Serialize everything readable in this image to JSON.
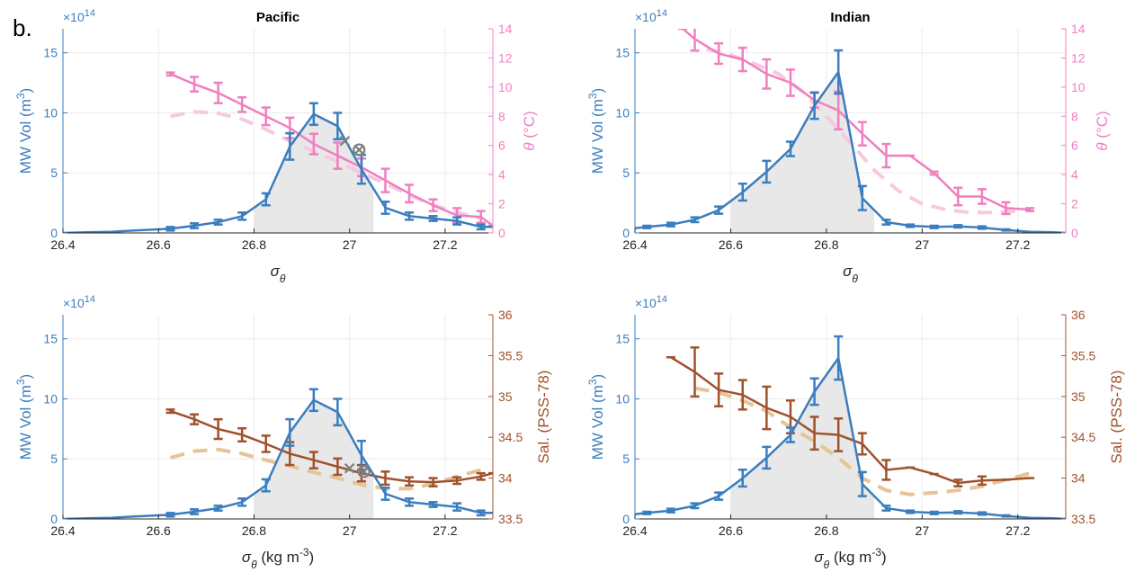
{
  "panel_label": "b.",
  "colors": {
    "volume": "#3a7ebf",
    "theta": "#f07fc0",
    "theta_clim": "#f7c8e2",
    "salinity": "#a0522d",
    "salinity_clim": "#e5c495",
    "marker": "#7f7f7f",
    "shade": "#e8e8e8",
    "grid": "#ebebeb"
  },
  "chart_data": [
    {
      "type": "line",
      "title": "Pacific",
      "xlabel": "σθ",
      "ylabel_left": "MW Vol (m3)",
      "ylabel_right": "θ (°C)",
      "y_multiplier": "×10",
      "y_multiplier_exp": "14",
      "xlim": [
        26.4,
        27.3
      ],
      "ylim_left": [
        0,
        17
      ],
      "ylim_right": [
        0,
        14
      ],
      "xticks": [
        "26.4",
        "26.6",
        "26.8",
        "27",
        "27.2"
      ],
      "yticks_left": [
        "0",
        "5",
        "10",
        "15"
      ],
      "yticks_right": [
        "0",
        "2",
        "4",
        "6",
        "8",
        "10",
        "12",
        "14"
      ],
      "shaded_range": [
        26.8,
        27.05
      ],
      "grid": true,
      "volume": {
        "x": [
          26.4,
          26.45,
          26.5,
          26.55,
          26.6,
          26.625,
          26.675,
          26.725,
          26.775,
          26.825,
          26.875,
          26.925,
          26.975,
          27.025,
          27.075,
          27.125,
          27.175,
          27.225,
          27.275,
          27.3
        ],
        "y": [
          0.0,
          0.05,
          0.1,
          0.2,
          0.3,
          0.35,
          0.6,
          0.9,
          1.4,
          2.8,
          7.2,
          9.9,
          8.9,
          5.3,
          2.1,
          1.4,
          1.2,
          1.0,
          0.5,
          0.5
        ],
        "err": [
          0,
          0,
          0,
          0,
          0,
          0.15,
          0.2,
          0.2,
          0.3,
          0.5,
          1.1,
          0.9,
          1.1,
          1.2,
          0.5,
          0.3,
          0.2,
          0.3,
          0.2,
          0
        ]
      },
      "property": {
        "x": [
          26.625,
          26.675,
          26.725,
          26.775,
          26.825,
          26.875,
          26.925,
          26.975,
          27.025,
          27.075,
          27.125,
          27.175,
          27.225,
          27.275,
          27.3
        ],
        "y": [
          10.9,
          10.2,
          9.6,
          8.8,
          8.0,
          7.2,
          6.1,
          5.3,
          4.5,
          3.6,
          2.7,
          1.9,
          1.2,
          1.1,
          0.5
        ],
        "err": [
          0.1,
          0.5,
          0.7,
          0.5,
          0.6,
          0.7,
          0.7,
          0.9,
          0.6,
          0.8,
          0.6,
          0.4,
          0.5,
          0.4,
          0
        ]
      },
      "climatology": {
        "x": [
          26.625,
          26.675,
          26.725,
          26.775,
          26.825,
          26.875,
          26.925,
          26.975,
          27.025,
          27.075,
          27.125,
          27.175,
          27.225,
          27.275
        ],
        "y": [
          8.0,
          8.3,
          8.2,
          7.8,
          7.1,
          6.3,
          5.6,
          4.9,
          4.1,
          3.4,
          2.6,
          1.9,
          1.4,
          1.0
        ]
      },
      "markers": [
        {
          "shape": "x",
          "x": 26.99,
          "y": 6.3
        },
        {
          "shape": "circle-x",
          "x": 27.02,
          "y": 5.7
        }
      ]
    },
    {
      "type": "line",
      "title": "Indian",
      "xlabel": "σθ",
      "ylabel_left": "MW Vol (m3)",
      "ylabel_right": "θ (°C)",
      "y_multiplier": "×10",
      "y_multiplier_exp": "14",
      "xlim": [
        26.4,
        27.3
      ],
      "ylim_left": [
        0,
        17
      ],
      "ylim_right": [
        0,
        14
      ],
      "xticks": [
        "26.4",
        "26.6",
        "26.8",
        "27",
        "27.2"
      ],
      "yticks_left": [
        "0",
        "5",
        "10",
        "15"
      ],
      "yticks_right": [
        "0",
        "2",
        "4",
        "6",
        "8",
        "10",
        "12",
        "14"
      ],
      "shaded_range": [
        26.6,
        26.9
      ],
      "grid": true,
      "volume": {
        "x": [
          26.4,
          26.425,
          26.475,
          26.525,
          26.575,
          26.625,
          26.675,
          26.725,
          26.775,
          26.825,
          26.875,
          26.925,
          26.975,
          27.025,
          27.075,
          27.125,
          27.175,
          27.225,
          27.275,
          27.3
        ],
        "y": [
          0.4,
          0.5,
          0.7,
          1.1,
          1.9,
          3.4,
          5.1,
          7.0,
          10.6,
          13.4,
          2.9,
          0.9,
          0.6,
          0.5,
          0.55,
          0.45,
          0.25,
          0.1,
          0.05,
          0
        ],
        "err": [
          0,
          0.1,
          0.15,
          0.2,
          0.3,
          0.7,
          0.9,
          0.6,
          1.1,
          1.8,
          1.0,
          0.2,
          0.1,
          0.1,
          0.1,
          0.1,
          0.05,
          0,
          0,
          0
        ]
      },
      "property": {
        "x": [
          26.5,
          26.525,
          26.575,
          26.625,
          26.675,
          26.725,
          26.775,
          26.825,
          26.875,
          26.925,
          26.975,
          27.025,
          27.075,
          27.125,
          27.175,
          27.225
        ],
        "y": [
          14.0,
          13.3,
          12.3,
          11.9,
          10.9,
          10.3,
          9.1,
          8.4,
          6.8,
          5.3,
          5.3,
          4.1,
          2.5,
          2.5,
          1.7,
          1.6
        ],
        "err": [
          0,
          0.8,
          0.7,
          0.8,
          1.0,
          0.9,
          0.5,
          1.3,
          0.8,
          0.8,
          0,
          0.1,
          0.6,
          0.5,
          0.4,
          0.1
        ]
      },
      "climatology": {
        "x": [
          26.55,
          26.6,
          26.65,
          26.7,
          26.75,
          26.8,
          26.85,
          26.9,
          26.95,
          27.0,
          27.05,
          27.1,
          27.15,
          27.2
        ],
        "y": [
          12.6,
          12.2,
          11.6,
          10.9,
          9.7,
          8.0,
          6.2,
          4.3,
          2.9,
          2.0,
          1.6,
          1.4,
          1.4,
          1.5
        ]
      },
      "markers": []
    },
    {
      "type": "line",
      "title": "",
      "xlabel": "σθ (kg m-3)",
      "ylabel_left": "MW Vol (m3)",
      "ylabel_right": "Sal. (PSS-78)",
      "y_multiplier": "×10",
      "y_multiplier_exp": "14",
      "xlim": [
        26.4,
        27.3
      ],
      "ylim_left": [
        0,
        17
      ],
      "ylim_right": [
        33.5,
        36
      ],
      "xticks": [
        "26.4",
        "26.6",
        "26.8",
        "27",
        "27.2"
      ],
      "yticks_left": [
        "0",
        "5",
        "10",
        "15"
      ],
      "yticks_right": [
        "33.5",
        "34",
        "34.5",
        "35",
        "35.5",
        "36"
      ],
      "shaded_range": [
        26.8,
        27.05
      ],
      "grid": true,
      "volume": {
        "x": [
          26.4,
          26.45,
          26.5,
          26.55,
          26.6,
          26.625,
          26.675,
          26.725,
          26.775,
          26.825,
          26.875,
          26.925,
          26.975,
          27.025,
          27.075,
          27.125,
          27.175,
          27.225,
          27.275,
          27.3
        ],
        "y": [
          0.0,
          0.05,
          0.1,
          0.2,
          0.3,
          0.35,
          0.6,
          0.9,
          1.4,
          2.8,
          7.2,
          9.9,
          8.9,
          5.3,
          2.1,
          1.4,
          1.2,
          1.0,
          0.5,
          0.5
        ],
        "err": [
          0,
          0,
          0,
          0,
          0,
          0.15,
          0.2,
          0.2,
          0.3,
          0.5,
          1.1,
          0.9,
          1.1,
          1.2,
          0.5,
          0.3,
          0.2,
          0.3,
          0.2,
          0
        ]
      },
      "property": {
        "x": [
          26.625,
          26.675,
          26.725,
          26.775,
          26.825,
          26.875,
          26.925,
          26.975,
          27.025,
          27.075,
          27.125,
          27.175,
          27.225,
          27.275,
          27.3
        ],
        "y": [
          34.82,
          34.72,
          34.6,
          34.53,
          34.42,
          34.3,
          34.22,
          34.14,
          34.06,
          34.0,
          33.96,
          33.95,
          33.97,
          34.02,
          34.06
        ],
        "err": [
          0.02,
          0.06,
          0.12,
          0.08,
          0.1,
          0.14,
          0.1,
          0.1,
          0.1,
          0.08,
          0.05,
          0.05,
          0.04,
          0.04,
          0
        ]
      },
      "climatology": {
        "x": [
          26.625,
          26.675,
          26.725,
          26.775,
          26.825,
          26.875,
          26.925,
          26.975,
          27.025,
          27.075,
          27.125,
          27.175,
          27.225,
          27.275
        ],
        "y": [
          34.25,
          34.33,
          34.35,
          34.3,
          34.22,
          34.15,
          34.07,
          34.0,
          33.92,
          33.87,
          33.87,
          33.93,
          34.02,
          34.1
        ]
      },
      "markers": [
        {
          "shape": "x",
          "x": 27.0,
          "y": 34.12
        },
        {
          "shape": "circle-x",
          "x": 27.03,
          "y": 34.08
        }
      ]
    },
    {
      "type": "line",
      "title": "",
      "xlabel": "σθ (kg m-3)",
      "ylabel_left": "MW Vol (m3)",
      "ylabel_right": "Sal. (PSS-78)",
      "y_multiplier": "×10",
      "y_multiplier_exp": "14",
      "xlim": [
        26.4,
        27.3
      ],
      "ylim_left": [
        0,
        17
      ],
      "ylim_right": [
        33.5,
        36
      ],
      "xticks": [
        "26.4",
        "26.6",
        "26.8",
        "27",
        "27.2"
      ],
      "yticks_left": [
        "0",
        "5",
        "10",
        "15"
      ],
      "yticks_right": [
        "33.5",
        "34",
        "34.5",
        "35",
        "35.5",
        "36"
      ],
      "shaded_range": [
        26.6,
        26.9
      ],
      "grid": true,
      "volume": {
        "x": [
          26.4,
          26.425,
          26.475,
          26.525,
          26.575,
          26.625,
          26.675,
          26.725,
          26.775,
          26.825,
          26.875,
          26.925,
          26.975,
          27.025,
          27.075,
          27.125,
          27.175,
          27.225,
          27.275,
          27.3
        ],
        "y": [
          0.4,
          0.5,
          0.7,
          1.1,
          1.9,
          3.4,
          5.1,
          7.0,
          10.6,
          13.4,
          2.9,
          0.9,
          0.6,
          0.5,
          0.55,
          0.45,
          0.25,
          0.1,
          0.05,
          0
        ],
        "err": [
          0,
          0.1,
          0.15,
          0.2,
          0.3,
          0.7,
          0.9,
          0.6,
          1.1,
          1.8,
          1.0,
          0.2,
          0.1,
          0.1,
          0.1,
          0.1,
          0.05,
          0,
          0,
          0
        ]
      },
      "property": {
        "x": [
          26.475,
          26.525,
          26.575,
          26.625,
          26.675,
          26.725,
          26.775,
          26.825,
          26.875,
          26.925,
          26.975,
          27.025,
          27.075,
          27.125,
          27.175,
          27.225
        ],
        "y": [
          35.48,
          35.3,
          35.08,
          35.02,
          34.86,
          34.75,
          34.55,
          34.53,
          34.42,
          34.1,
          34.13,
          34.05,
          33.94,
          33.97,
          33.98,
          34.0
        ],
        "err": [
          0,
          0.3,
          0.2,
          0.18,
          0.26,
          0.2,
          0.2,
          0.2,
          0.13,
          0.12,
          0,
          0,
          0.04,
          0.05,
          0,
          0
        ]
      },
      "climatology": {
        "x": [
          26.525,
          26.575,
          26.625,
          26.675,
          26.725,
          26.775,
          26.825,
          26.875,
          26.925,
          26.975,
          27.025,
          27.075,
          27.125,
          27.175,
          27.225
        ],
        "y": [
          35.1,
          35.05,
          34.95,
          34.82,
          34.62,
          34.45,
          34.25,
          34.0,
          33.85,
          33.8,
          33.82,
          33.85,
          33.9,
          33.98,
          34.06
        ]
      },
      "markers": []
    }
  ]
}
